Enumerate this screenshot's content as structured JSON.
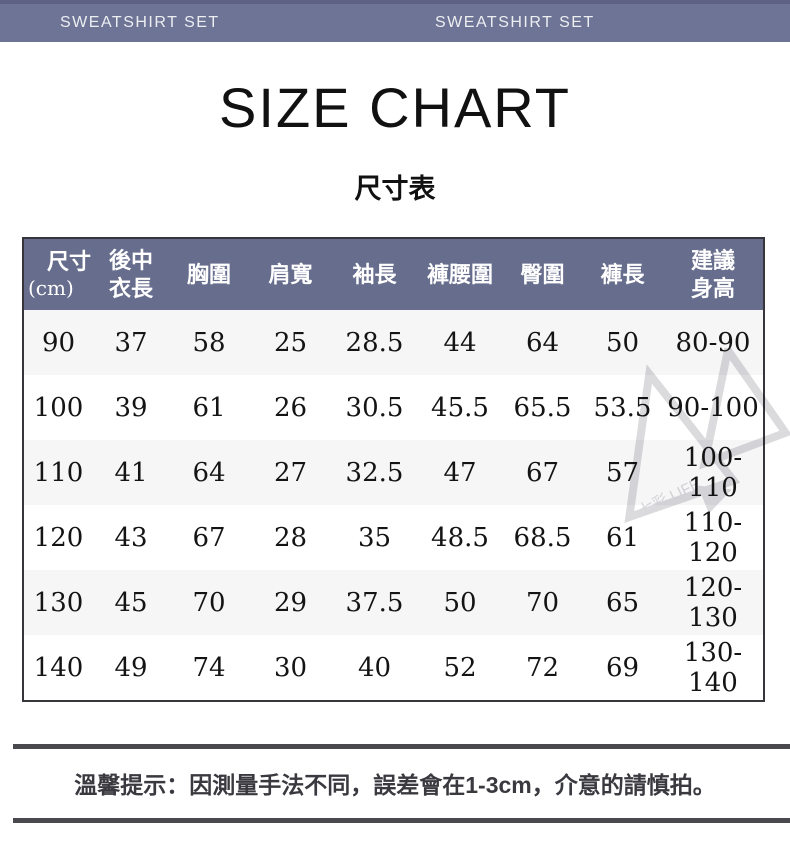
{
  "banner": {
    "label_left": "SWEATSHIRT SET",
    "label_right": "SWEATSHIRT SET",
    "bg_color": "#6e7495"
  },
  "title": "SIZE CHART",
  "subtitle": "尺寸表",
  "size_table": {
    "header_bg_color": "#676d8c",
    "stripe_color": "#f6f6f7",
    "unit": "cm",
    "headers": [
      [
        "尺寸",
        "(cm)"
      ],
      [
        "後中",
        "衣長"
      ],
      [
        "胸圍"
      ],
      [
        "肩寬"
      ],
      [
        "袖長"
      ],
      [
        "褲腰圍"
      ],
      [
        "臀圍"
      ],
      [
        "褲長"
      ],
      [
        "建議",
        "身高"
      ]
    ],
    "rows": [
      [
        "90",
        "37",
        "58",
        "25",
        "28.5",
        "44",
        "64",
        "50",
        "80-90"
      ],
      [
        "100",
        "39",
        "61",
        "26",
        "30.5",
        "45.5",
        "65.5",
        "53.5",
        "90-100"
      ],
      [
        "110",
        "41",
        "64",
        "27",
        "32.5",
        "47",
        "67",
        "57",
        "100-110"
      ],
      [
        "120",
        "43",
        "67",
        "28",
        "35",
        "48.5",
        "68.5",
        "61",
        "110-120"
      ],
      [
        "130",
        "45",
        "70",
        "29",
        "37.5",
        "50",
        "70",
        "65",
        "120-130"
      ],
      [
        "140",
        "49",
        "74",
        "30",
        "40",
        "52",
        "72",
        "69",
        "130-140"
      ]
    ]
  },
  "note": {
    "text": "溫馨提示：因測量手法不同，誤差會在1-3cm，介意的請慎拍。",
    "separator_color": "#49494e"
  },
  "watermark": {
    "text": "七彩 LIFE"
  }
}
